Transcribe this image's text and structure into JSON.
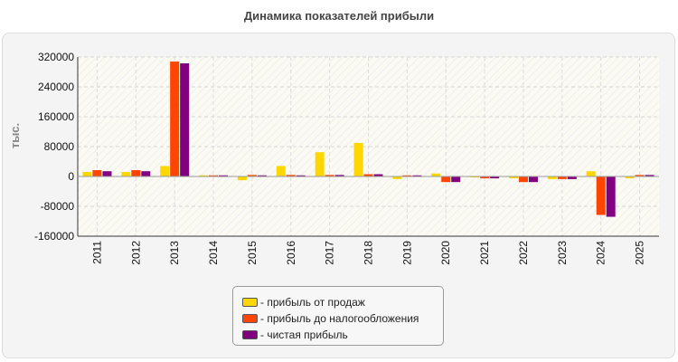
{
  "chart_data": {
    "type": "bar",
    "title": "Динамика показателей прибыли",
    "ylabel": "тыс.",
    "xlabel": "",
    "ylim": [
      -160000,
      320000
    ],
    "yticks": [
      320000,
      240000,
      160000,
      80000,
      0,
      -80000,
      -160000
    ],
    "grid": true,
    "legend_position": "bottom-center",
    "categories": [
      "2011",
      "2012",
      "2013",
      "2014",
      "2015",
      "2016",
      "2017",
      "2018",
      "2019",
      "2020",
      "2021",
      "2022",
      "2023",
      "2024",
      "2025"
    ],
    "series": [
      {
        "name": "- прибыль от продаж",
        "color": "#ffd700",
        "values": [
          12000,
          12000,
          28000,
          3000,
          -10000,
          28000,
          65000,
          90000,
          -7000,
          8000,
          -2000,
          -5000,
          -7000,
          14000,
          -5000
        ]
      },
      {
        "name": "- прибыль до налогообложения",
        "color": "#ff4500",
        "values": [
          17000,
          17000,
          308000,
          3000,
          4000,
          4000,
          4000,
          6000,
          3000,
          -15000,
          -5000,
          -15000,
          -7000,
          -103000,
          4000
        ]
      },
      {
        "name": "- чистая прибыль",
        "color": "#800080",
        "values": [
          14000,
          14000,
          303000,
          3000,
          3000,
          3000,
          4000,
          6000,
          3000,
          -15000,
          -5000,
          -15000,
          -7000,
          -108000,
          4000
        ]
      }
    ]
  }
}
